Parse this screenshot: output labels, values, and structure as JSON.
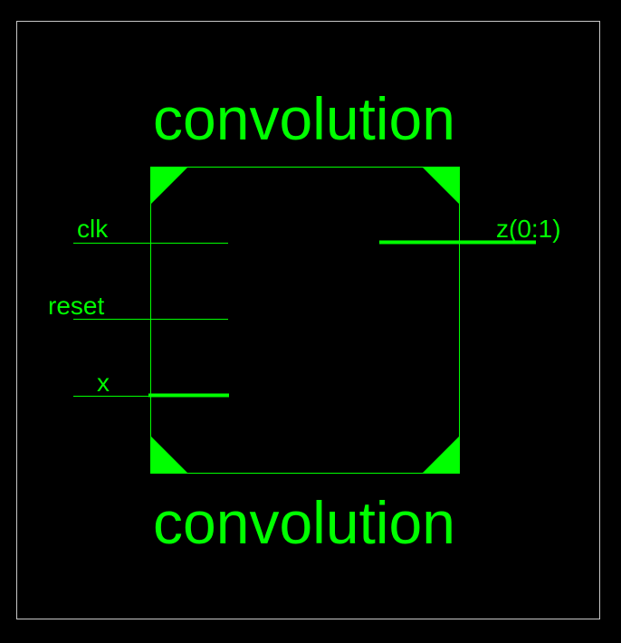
{
  "component": {
    "name_top": "convolution",
    "name_bottom": "convolution"
  },
  "ports": {
    "inputs": [
      {
        "label": "clk",
        "bus": false
      },
      {
        "label": "reset",
        "bus": false
      },
      {
        "label": "x",
        "bus": true
      }
    ],
    "outputs": [
      {
        "label": "z(0:1)",
        "bus": true
      }
    ]
  },
  "colors": {
    "background": "#000000",
    "symbol": "#00ff00",
    "frame": "#c8c8c8"
  }
}
